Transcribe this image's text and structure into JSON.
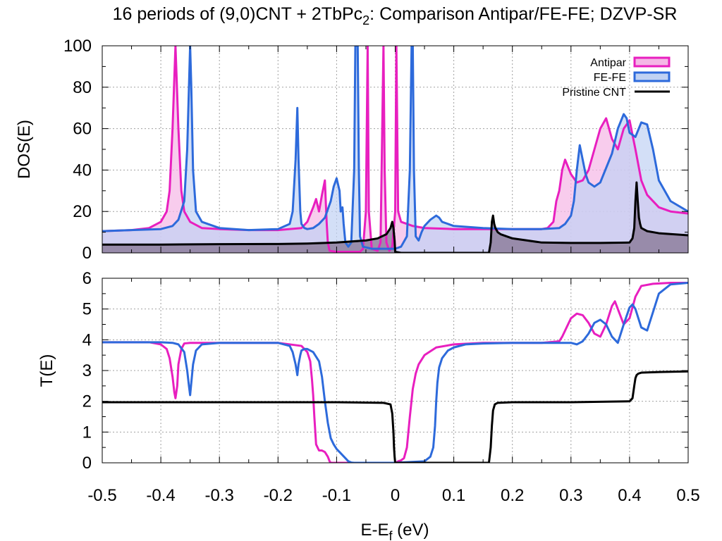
{
  "chart_data": {
    "type": "line",
    "title_main": "16 periods of (9,0)CNT + 2TbPc",
    "title_sub": "2",
    "title_rest": ": Comparison Antipar/FE-FE; DZVP-SR",
    "xlabel_main": "E-E",
    "xlabel_sub": "f",
    "xlabel_rest": " (eV)",
    "xlim": [
      -0.5,
      0.5
    ],
    "x_ticks": [
      "-0.5",
      "-0.4",
      "-0.3",
      "-0.2",
      "-0.1",
      "0",
      "0.1",
      "0.2",
      "0.3",
      "0.4",
      "0.5"
    ],
    "x_tick_values": [
      -0.5,
      -0.4,
      -0.3,
      -0.2,
      -0.1,
      0,
      0.1,
      0.2,
      0.3,
      0.4,
      0.5
    ],
    "grid": true,
    "legend_position": "top-right",
    "colors": {
      "antipar": "#e81fbf",
      "antipar_fill": "#f5b7e6",
      "fefe": "#2d6adb",
      "fefe_fill": "#c0d2f3",
      "pristine": "#000000",
      "pristine_fill": "#8e7f9e",
      "overlap_fill": "#c8afe8"
    },
    "panels": [
      {
        "name": "dos",
        "ylabel": "DOS(E)",
        "ylim": [
          0,
          100
        ],
        "y_ticks": [
          "0",
          "20",
          "40",
          "60",
          "80",
          "100"
        ],
        "y_tick_values": [
          0,
          20,
          40,
          60,
          80,
          100
        ],
        "legend": [
          "Antipar",
          "FE-FE",
          "Pristine CNT"
        ],
        "series": [
          {
            "name": "Antipar",
            "x": [
              -0.5,
              -0.45,
              -0.42,
              -0.4,
              -0.39,
              -0.385,
              -0.38,
              -0.375,
              -0.37,
              -0.365,
              -0.36,
              -0.35,
              -0.33,
              -0.3,
              -0.25,
              -0.2,
              -0.16,
              -0.15,
              -0.14,
              -0.135,
              -0.13,
              -0.125,
              -0.12,
              -0.117,
              -0.115,
              -0.112,
              -0.1,
              -0.08,
              -0.06,
              -0.055,
              -0.05,
              -0.047,
              -0.045,
              -0.04,
              -0.03,
              -0.025,
              -0.02,
              -0.018,
              -0.015,
              -0.01,
              -0.005,
              0,
              0.002,
              0.005,
              0.01,
              0.02,
              0.03,
              0.05,
              0.1,
              0.15,
              0.2,
              0.25,
              0.26,
              0.27,
              0.275,
              0.28,
              0.285,
              0.29,
              0.3,
              0.31,
              0.32,
              0.33,
              0.34,
              0.35,
              0.36,
              0.37,
              0.38,
              0.39,
              0.4,
              0.41,
              0.42,
              0.43,
              0.45,
              0.47,
              0.5
            ],
            "y": [
              10.5,
              11,
              12,
              15,
              20,
              30,
              60,
              100,
              60,
              30,
              20,
              15,
              12,
              11.5,
              11,
              11,
              12,
              15,
              22,
              26,
              20,
              28,
              35,
              15,
              5,
              1,
              0.5,
              0.5,
              0.5,
              2,
              20,
              100,
              20,
              2,
              1,
              5,
              100,
              40,
              5,
              1,
              3,
              20,
              100,
              20,
              15,
              14,
              13,
              12,
              11.5,
              11.5,
              11.5,
              11.5,
              12,
              15,
              25,
              30,
              40,
              45,
              38,
              34,
              35,
              40,
              50,
              60,
              65,
              55,
              50,
              60,
              64,
              50,
              35,
              28,
              22,
              20,
              19
            ]
          },
          {
            "name": "FE-FE",
            "x": [
              -0.5,
              -0.45,
              -0.4,
              -0.38,
              -0.37,
              -0.36,
              -0.355,
              -0.352,
              -0.35,
              -0.348,
              -0.345,
              -0.34,
              -0.33,
              -0.3,
              -0.25,
              -0.2,
              -0.18,
              -0.175,
              -0.17,
              -0.167,
              -0.165,
              -0.162,
              -0.16,
              -0.155,
              -0.15,
              -0.14,
              -0.13,
              -0.12,
              -0.11,
              -0.105,
              -0.1,
              -0.095,
              -0.093,
              -0.09,
              -0.088,
              -0.085,
              -0.08,
              -0.075,
              -0.07,
              -0.068,
              -0.066,
              -0.064,
              -0.062,
              -0.06,
              -0.055,
              -0.04,
              -0.02,
              0,
              0.01,
              0.02,
              0.025,
              0.028,
              0.03,
              0.032,
              0.035,
              0.04,
              0.045,
              0.05,
              0.06,
              0.07,
              0.075,
              0.08,
              0.1,
              0.15,
              0.2,
              0.25,
              0.28,
              0.29,
              0.3,
              0.305,
              0.31,
              0.315,
              0.32,
              0.325,
              0.33,
              0.34,
              0.35,
              0.37,
              0.38,
              0.39,
              0.395,
              0.4,
              0.41,
              0.42,
              0.43,
              0.44,
              0.45,
              0.47,
              0.5
            ],
            "y": [
              10.5,
              11,
              11.5,
              13,
              16,
              25,
              50,
              80,
              100,
              80,
              40,
              20,
              15,
              12,
              11,
              11.5,
              14,
              20,
              45,
              70,
              45,
              20,
              14,
              12,
              11.5,
              12,
              14,
              17,
              25,
              32,
              36,
              30,
              20,
              22,
              14,
              5,
              3,
              5,
              40,
              100,
              100,
              100,
              40,
              8,
              3,
              2,
              2,
              2,
              3,
              8,
              40,
              100,
              100,
              40,
              8,
              6,
              10,
              13,
              16,
              18,
              17,
              15,
              13,
              12,
              11.5,
              11.5,
              12,
              14,
              18,
              25,
              40,
              52,
              45,
              38,
              34,
              32,
              34,
              48,
              60,
              67,
              65,
              58,
              56,
              63,
              62,
              50,
              35,
              25,
              20
            ]
          },
          {
            "name": "Pristine CNT",
            "x": [
              -0.5,
              -0.4,
              -0.3,
              -0.2,
              -0.15,
              -0.1,
              -0.05,
              -0.03,
              -0.015,
              -0.008,
              -0.005,
              -0.003,
              -0.001,
              0,
              0.01,
              0.05,
              0.1,
              0.15,
              0.16,
              0.163,
              0.165,
              0.167,
              0.169,
              0.171,
              0.173,
              0.175,
              0.18,
              0.2,
              0.25,
              0.3,
              0.35,
              0.4,
              0.405,
              0.408,
              0.41,
              0.412,
              0.414,
              0.416,
              0.418,
              0.42,
              0.43,
              0.45,
              0.5
            ],
            "y": [
              4,
              4,
              4.2,
              4.3,
              4.5,
              5,
              6,
              7,
              9,
              12,
              15,
              12,
              6,
              0.5,
              0,
              0,
              0,
              0,
              0,
              5,
              15,
              18,
              14,
              12,
              11,
              10,
              9,
              7,
              5,
              4.8,
              4.8,
              5,
              7,
              12,
              25,
              34,
              25,
              17,
              14,
              12,
              10.5,
              9.5,
              8.5
            ]
          }
        ]
      },
      {
        "name": "transmission",
        "ylabel": "T(E)",
        "ylim": [
          0,
          6
        ],
        "y_ticks": [
          "0",
          "1",
          "2",
          "3",
          "4",
          "5",
          "6"
        ],
        "y_tick_values": [
          0,
          1,
          2,
          3,
          4,
          5,
          6
        ],
        "series": [
          {
            "name": "Antipar",
            "x": [
              -0.5,
              -0.42,
              -0.4,
              -0.39,
              -0.385,
              -0.38,
              -0.377,
              -0.375,
              -0.372,
              -0.37,
              -0.365,
              -0.36,
              -0.35,
              -0.3,
              -0.2,
              -0.16,
              -0.15,
              -0.145,
              -0.142,
              -0.14,
              -0.138,
              -0.135,
              -0.13,
              -0.125,
              -0.12,
              -0.115,
              -0.112,
              -0.11,
              -0.1,
              -0.05,
              -0.02,
              0,
              0.003,
              0.005,
              0.01,
              0.015,
              0.02,
              0.025,
              0.03,
              0.035,
              0.04,
              0.05,
              0.07,
              0.1,
              0.15,
              0.2,
              0.25,
              0.28,
              0.285,
              0.29,
              0.295,
              0.3,
              0.31,
              0.32,
              0.33,
              0.34,
              0.35,
              0.36,
              0.37,
              0.375,
              0.38,
              0.39,
              0.4,
              0.41,
              0.42,
              0.44,
              0.47,
              0.5
            ],
            "y": [
              3.92,
              3.92,
              3.85,
              3.7,
              3.4,
              2.8,
              2.3,
              2.1,
              2.5,
              3.2,
              3.7,
              3.88,
              3.9,
              3.9,
              3.9,
              3.8,
              3.6,
              3.3,
              2.7,
              2.2,
              1.5,
              0.6,
              0.4,
              0.4,
              0.35,
              0.2,
              0.05,
              0,
              0,
              0,
              0,
              0,
              0.02,
              0.05,
              0.08,
              0.15,
              0.5,
              1.5,
              2.4,
              2.9,
              3.2,
              3.5,
              3.75,
              3.85,
              3.9,
              3.9,
              3.9,
              3.95,
              4.1,
              4.3,
              4.5,
              4.7,
              4.85,
              4.8,
              4.55,
              4.2,
              4.1,
              4.5,
              5.1,
              5.25,
              5,
              4.5,
              4.7,
              5.4,
              5.75,
              5.82,
              5.85,
              5.85
            ]
          },
          {
            "name": "FE-FE",
            "x": [
              -0.5,
              -0.4,
              -0.38,
              -0.37,
              -0.36,
              -0.355,
              -0.352,
              -0.35,
              -0.348,
              -0.345,
              -0.34,
              -0.33,
              -0.3,
              -0.2,
              -0.18,
              -0.175,
              -0.17,
              -0.167,
              -0.165,
              -0.162,
              -0.16,
              -0.155,
              -0.15,
              -0.14,
              -0.13,
              -0.125,
              -0.12,
              -0.115,
              -0.11,
              -0.105,
              -0.1,
              -0.095,
              -0.09,
              -0.085,
              -0.08,
              -0.075,
              -0.07,
              -0.05,
              0,
              0.05,
              0.06,
              0.065,
              0.068,
              0.07,
              0.072,
              0.075,
              0.08,
              0.09,
              0.1,
              0.12,
              0.15,
              0.2,
              0.25,
              0.28,
              0.3,
              0.31,
              0.32,
              0.33,
              0.34,
              0.35,
              0.36,
              0.37,
              0.38,
              0.39,
              0.4,
              0.405,
              0.41,
              0.42,
              0.43,
              0.44,
              0.45,
              0.47,
              0.5
            ],
            "y": [
              3.92,
              3.92,
              3.9,
              3.85,
              3.6,
              3.0,
              2.5,
              2.2,
              2.6,
              3.2,
              3.65,
              3.85,
              3.9,
              3.9,
              3.8,
              3.6,
              3.2,
              2.85,
              3.2,
              3.5,
              3.65,
              3.7,
              3.7,
              3.6,
              3.3,
              2.8,
              2.0,
              1.3,
              0.8,
              0.6,
              0.45,
              0.35,
              0.25,
              0.15,
              0.05,
              0.01,
              0,
              0,
              0,
              0.05,
              0.2,
              0.5,
              1.2,
              2.0,
              2.6,
              3.1,
              3.4,
              3.65,
              3.75,
              3.85,
              3.88,
              3.9,
              3.9,
              3.9,
              3.9,
              3.85,
              3.95,
              4.2,
              4.55,
              4.65,
              4.5,
              4.1,
              3.9,
              4.5,
              5.05,
              5.15,
              5.0,
              4.4,
              4.3,
              4.9,
              5.5,
              5.8,
              5.85
            ]
          },
          {
            "name": "Pristine CNT",
            "x": [
              -0.5,
              -0.3,
              -0.1,
              -0.02,
              -0.008,
              -0.005,
              -0.003,
              -0.002,
              -0.001,
              0,
              0.1,
              0.16,
              0.163,
              0.165,
              0.167,
              0.17,
              0.175,
              0.2,
              0.3,
              0.4,
              0.405,
              0.408,
              0.41,
              0.412,
              0.415,
              0.42,
              0.45,
              0.5
            ],
            "y": [
              1.97,
              1.97,
              1.97,
              1.95,
              1.9,
              1.6,
              1.0,
              0.5,
              0.2,
              0,
              0,
              0,
              0.5,
              1.2,
              1.7,
              1.9,
              1.95,
              1.97,
              1.97,
              2.0,
              2.1,
              2.5,
              2.75,
              2.85,
              2.9,
              2.93,
              2.95,
              2.97
            ]
          }
        ]
      }
    ]
  }
}
